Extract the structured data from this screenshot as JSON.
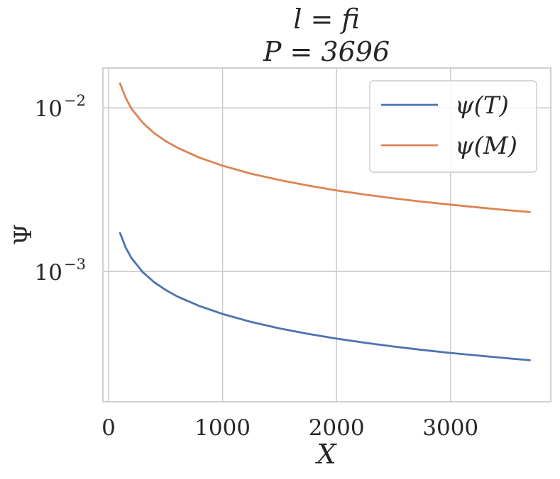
{
  "chart_data": {
    "type": "line",
    "title": "l = fi",
    "subtitle": "P = 3696",
    "xlabel": "X",
    "ylabel": "Ψ",
    "xlim": [
      -50,
      3880
    ],
    "ylim": [
      0.00016,
      0.0175
    ],
    "yscale": "log",
    "grid": true,
    "legend_position": "top-right",
    "x_ticks": [
      {
        "value": 0,
        "label": "0"
      },
      {
        "value": 1000,
        "label": "1000"
      },
      {
        "value": 2000,
        "label": "2000"
      },
      {
        "value": 3000,
        "label": "3000"
      }
    ],
    "y_ticks": [
      {
        "value": 0.01,
        "base": "10",
        "exp": "−2"
      },
      {
        "value": 0.001,
        "base": "10",
        "exp": "−3"
      }
    ],
    "x": [
      100,
      150,
      200,
      300,
      400,
      500,
      600,
      800,
      1000,
      1250,
      1500,
      1750,
      2000,
      2250,
      2500,
      2750,
      3000,
      3250,
      3500,
      3696
    ],
    "series": [
      {
        "name": "ψ(T)",
        "color": "#4c72b0",
        "values": [
          0.00172,
          0.0014,
          0.00121,
          0.00099,
          0.00086,
          0.000771,
          0.000705,
          0.000614,
          0.00055,
          0.000492,
          0.000449,
          0.000416,
          0.000389,
          0.000367,
          0.000348,
          0.000332,
          0.000318,
          0.000306,
          0.000295,
          0.000287
        ]
      },
      {
        "name": "ψ(M)",
        "color": "#dd8452",
        "values": [
          0.0141,
          0.0115,
          0.0099,
          0.0081,
          0.007,
          0.00626,
          0.00572,
          0.00495,
          0.00443,
          0.00396,
          0.00362,
          0.00335,
          0.00313,
          0.00295,
          0.0028,
          0.00267,
          0.00256,
          0.00246,
          0.00237,
          0.00231
        ]
      }
    ]
  }
}
